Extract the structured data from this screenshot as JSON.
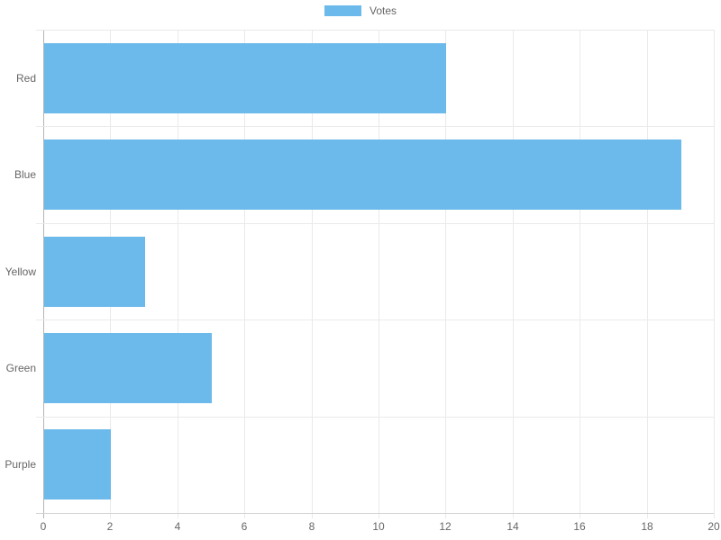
{
  "chart_data": {
    "type": "bar",
    "orientation": "horizontal",
    "title": "",
    "legend": {
      "label": "Votes",
      "position": "top"
    },
    "categories": [
      "Red",
      "Blue",
      "Yellow",
      "Green",
      "Purple"
    ],
    "series": [
      {
        "name": "Votes",
        "values": [
          12,
          19,
          3,
          5,
          2
        ]
      }
    ],
    "xlabel": "",
    "ylabel": "",
    "xlim": [
      0,
      20
    ],
    "x_ticks": [
      0,
      2,
      4,
      6,
      8,
      10,
      12,
      14,
      16,
      18,
      20
    ],
    "grid": true,
    "colors": {
      "bar": "#6CBAEB",
      "grid_line": "#EAEAEA",
      "zero_line": "#B5B5B5",
      "bottom_axis_line": "#D4D4D4",
      "tick_text": "#666666"
    }
  }
}
